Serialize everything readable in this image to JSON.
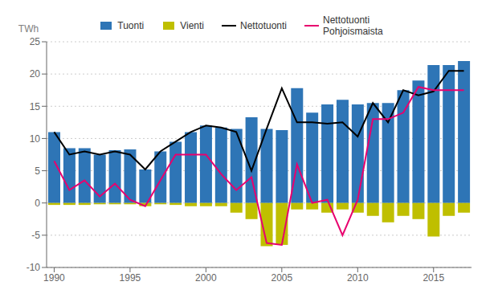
{
  "chart_data": {
    "type": "bar",
    "ylabel": "TWh",
    "x": [
      1990,
      1991,
      1992,
      1993,
      1994,
      1995,
      1996,
      1997,
      1998,
      1999,
      2000,
      2001,
      2002,
      2003,
      2004,
      2005,
      2006,
      2007,
      2008,
      2009,
      2010,
      2011,
      2012,
      2013,
      2014,
      2015,
      2016,
      2017
    ],
    "series": [
      {
        "name": "Tuonti",
        "type": "bar",
        "color": "#2e75b6",
        "values": [
          11.0,
          8.5,
          8.5,
          7.5,
          8.2,
          8.3,
          5.2,
          8.0,
          9.5,
          11.0,
          12.0,
          11.7,
          11.5,
          13.3,
          11.5,
          11.3,
          17.8,
          14.0,
          15.3,
          16.0,
          15.3,
          15.5,
          15.5,
          17.5,
          19.0,
          21.4,
          21.4,
          22.0
        ]
      },
      {
        "name": "Vienti",
        "type": "bar",
        "color": "#bfbf00",
        "values": [
          -0.3,
          -0.3,
          -0.3,
          -0.2,
          -0.2,
          -0.2,
          -0.5,
          -0.2,
          -0.3,
          -0.5,
          -0.5,
          -0.5,
          -1.5,
          -2.5,
          -6.7,
          -6.5,
          -1.0,
          -1.0,
          -1.5,
          -1.0,
          -1.5,
          -2.0,
          -3.0,
          -2.0,
          -2.5,
          -5.2,
          -2.0,
          -1.5
        ]
      },
      {
        "name": "Nettotuonti",
        "type": "line",
        "color": "#000000",
        "values": [
          11.0,
          7.5,
          8.0,
          7.5,
          8.0,
          7.5,
          5.2,
          8.0,
          9.5,
          11.0,
          12.0,
          11.7,
          11.0,
          5.0,
          11.5,
          17.8,
          12.5,
          12.5,
          12.3,
          12.5,
          10.3,
          15.5,
          12.5,
          17.5,
          16.7,
          17.3,
          20.5,
          20.5
        ]
      },
      {
        "name": "Nettotuonti\nPohjoismaista",
        "type": "line",
        "color": "#e8006e",
        "values": [
          6.5,
          2.0,
          3.5,
          1.0,
          3.0,
          0.5,
          -0.5,
          3.5,
          7.5,
          7.5,
          7.5,
          4.5,
          2.0,
          4.0,
          -6.2,
          -6.5,
          6.0,
          0.0,
          0.5,
          -5.0,
          0.5,
          13.0,
          13.0,
          14.0,
          18.0,
          17.5,
          17.5,
          17.5
        ]
      }
    ],
    "xlim": [
      1989.5,
      2017.5
    ],
    "xticks": [
      1990,
      1995,
      2000,
      2005,
      2010,
      2015
    ],
    "ylim": [
      -10,
      25
    ],
    "yticks": [
      -10,
      -5,
      0,
      5,
      10,
      15,
      20,
      25
    ],
    "grid": true
  }
}
